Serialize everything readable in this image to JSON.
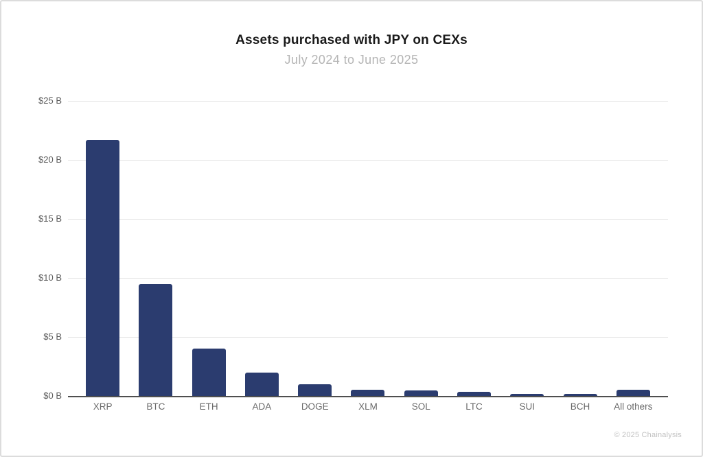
{
  "header": {
    "title": "Assets purchased with JPY on CEXs",
    "subtitle": "July 2024 to June 2025"
  },
  "footer": {
    "copyright": "© 2025 Chainalysis"
  },
  "colors": {
    "bar": "#2b3c6f",
    "gridline": "#e4e4e4",
    "axis_line": "#4f4f4f",
    "title": "#1a1a1a",
    "subtitle": "#b5b5b5",
    "tick_label": "#5c5c5c",
    "category_label": "#6b6b6b",
    "border": "#dcdcdc",
    "copyright": "#c2c2c2"
  },
  "chart_data": {
    "type": "bar",
    "title": "Assets purchased with JPY on CEXs",
    "subtitle": "July 2024 to June 2025",
    "categories": [
      "XRP",
      "BTC",
      "ETH",
      "ADA",
      "DOGE",
      "XLM",
      "SOL",
      "LTC",
      "SUI",
      "BCH",
      "All others"
    ],
    "values": [
      21.7,
      9.5,
      4.0,
      2.0,
      1.0,
      0.55,
      0.45,
      0.35,
      0.2,
      0.2,
      0.55
    ],
    "value_unit": "billions USD",
    "xlabel": "",
    "ylabel": "",
    "ylim": [
      0,
      25
    ],
    "y_ticks": [
      {
        "value": 25,
        "label": "$25 B"
      },
      {
        "value": 20,
        "label": "$20 B"
      },
      {
        "value": 15,
        "label": "$15 B"
      },
      {
        "value": 10,
        "label": "$10 B"
      },
      {
        "value": 5,
        "label": "$5 B"
      },
      {
        "value": 0,
        "label": "$0 B"
      }
    ],
    "grid": "horizontal",
    "legend": "none"
  }
}
